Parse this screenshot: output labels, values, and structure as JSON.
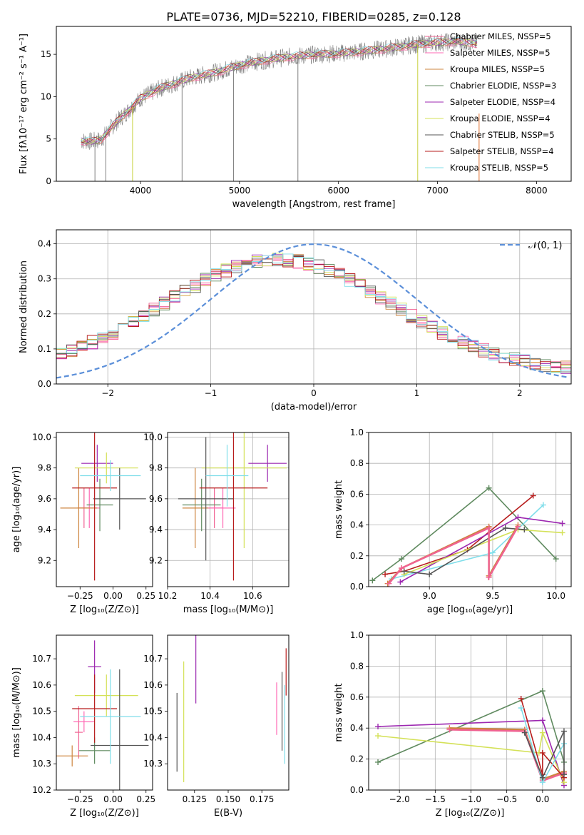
{
  "figure": {
    "title": "PLATE=0736, MJD=52210, FIBERID=0285, z=0.128",
    "colors": {
      "Chabrier MILES": "#f06292",
      "Salpeter MILES": "#ff69b4",
      "Kroupa MILES": "#cd853f",
      "Chabrier ELODIE": "#5f8a5f",
      "Salpeter ELODIE": "#9c27b0",
      "Kroupa ELODIE": "#d4e157",
      "Chabrier STELIB": "#555555",
      "Salpeter STELIB": "#b71c1c",
      "Kroupa STELIB": "#80deea",
      "gaussian": "#5b8fd9",
      "data": "#808080"
    }
  },
  "chart_data": [
    {
      "id": "spectrum",
      "type": "line",
      "xlabel": "wavelength [Angstrom, rest frame]",
      "ylabel": "Flux [fλ10⁻¹⁷ erg cm⁻² s⁻¹ A⁻¹]",
      "xlim": [
        3150,
        8350
      ],
      "ylim": [
        0,
        18.3
      ],
      "xticks": [
        4000,
        5000,
        6000,
        7000,
        8000
      ],
      "yticks": [
        0,
        5,
        10,
        15
      ],
      "legend": [
        "Chabrier MILES, NSSP=5",
        "Salpeter MILES, NSSP=5",
        "Kroupa MILES, NSSP=5",
        "Chabrier ELODIE, NSSP=3",
        "Salpeter ELODIE, NSSP=4",
        "Kroupa ELODIE, NSSP=4",
        "Chabrier STELIB, NSSP=5",
        "Salpeter STELIB, NSSP=4",
        "Kroupa STELIB, NSSP=5"
      ],
      "legend_keys": [
        "Chabrier MILES",
        "Salpeter MILES",
        "Kroupa MILES",
        "Chabrier ELODIE",
        "Salpeter ELODIE",
        "Kroupa ELODIE",
        "Chabrier STELIB",
        "Salpeter STELIB",
        "Kroupa STELIB"
      ],
      "continuum": {
        "x": [
          3400,
          3500,
          3600,
          3700,
          3800,
          3900,
          4000,
          4200,
          4500,
          4800,
          5000,
          5200,
          5500,
          5800,
          6000,
          6200,
          6500,
          6800,
          7000,
          7200,
          7400
        ],
        "y": [
          4.8,
          4.7,
          4.9,
          6.3,
          7.5,
          8.6,
          9.8,
          11.0,
          12.2,
          13.0,
          13.7,
          14.2,
          14.7,
          15.0,
          15.1,
          15.3,
          15.7,
          16.2,
          16.4,
          16.5,
          16.3
        ]
      },
      "absorption_spikes": [
        {
          "x": 3540,
          "y": 0
        },
        {
          "x": 3650,
          "y": 0
        },
        {
          "x": 3920,
          "y": 0
        },
        {
          "x": 4420,
          "y": 0
        },
        {
          "x": 4940,
          "y": 0
        },
        {
          "x": 5590,
          "y": 0
        },
        {
          "x": 6800,
          "y": 0
        },
        {
          "x": 7420,
          "y": 0
        }
      ]
    },
    {
      "id": "residuals",
      "type": "line",
      "xlabel": "(data-model)/error",
      "ylabel": "Normed distribution",
      "xlim": [
        -2.5,
        2.5
      ],
      "ylim": [
        0,
        0.44
      ],
      "xticks": [
        -2,
        -1,
        0,
        1,
        2
      ],
      "yticks": [
        0.0,
        0.1,
        0.2,
        0.3,
        0.4
      ],
      "legend": [
        "𝒩(0, 1)"
      ],
      "gaussian": {
        "mean": 0,
        "sigma": 1
      }
    },
    {
      "id": "age-vs-Z",
      "type": "scatter",
      "xlabel": "Z [log₁₀(Z/Z⊙)]",
      "ylabel": "age  [log₁₀(age/yr)]",
      "xlim": [
        -0.43,
        0.3
      ],
      "ylim": [
        9.03,
        10.03
      ],
      "xticks": [
        -0.25,
        0.0,
        0.25
      ],
      "yticks": [
        9.2,
        9.4,
        9.6,
        9.8,
        10.0
      ],
      "points": [
        {
          "key": "Chabrier MILES",
          "x": -0.22,
          "y": 9.54,
          "xerr": 0.05,
          "yerr": 0.13
        },
        {
          "key": "Salpeter MILES",
          "x": -0.18,
          "y": 9.54,
          "xerr": 0.08,
          "yerr": 0.13
        },
        {
          "key": "Kroupa MILES",
          "x": -0.26,
          "y": 9.54,
          "xerr": 0.14,
          "yerr": 0.26
        },
        {
          "key": "Chabrier ELODIE",
          "x": -0.1,
          "y": 9.56,
          "xerr": 0.1,
          "yerr": 0.17
        },
        {
          "key": "Salpeter ELODIE",
          "x": -0.12,
          "y": 9.83,
          "xerr": 0.12,
          "yerr": 0.12
        },
        {
          "key": "Kroupa ELODIE",
          "x": -0.05,
          "y": 9.8,
          "xerr": 0.24,
          "yerr": 0.1
        },
        {
          "key": "Chabrier STELIB",
          "x": 0.05,
          "y": 9.6,
          "xerr": 0.2,
          "yerr": 0.2
        },
        {
          "key": "Salpeter STELIB",
          "x": -0.14,
          "y": 9.67,
          "xerr": 0.17,
          "yerr": 0.6
        },
        {
          "key": "Kroupa STELIB",
          "x": -0.02,
          "y": 9.75,
          "xerr": 0.23,
          "yerr": 0.1
        }
      ]
    },
    {
      "id": "age-vs-mass",
      "type": "scatter",
      "xlabel": "mass [log₁₀(M/M⊙)]",
      "ylabel": "",
      "xlim": [
        10.2,
        10.77
      ],
      "ylim": [
        9.03,
        10.03
      ],
      "xticks": [
        10.2,
        10.4,
        10.6
      ],
      "yticks": [
        9.2,
        9.4,
        9.6,
        9.8,
        10.0
      ],
      "points": [
        {
          "key": "Chabrier MILES",
          "x": 10.42,
          "y": 9.54,
          "xerr": 0.04,
          "yerr": 0.13
        },
        {
          "key": "Salpeter MILES",
          "x": 10.46,
          "y": 9.54,
          "xerr": 0.06,
          "yerr": 0.13
        },
        {
          "key": "Kroupa MILES",
          "x": 10.33,
          "y": 9.54,
          "xerr": 0.06,
          "yerr": 0.26
        },
        {
          "key": "Chabrier ELODIE",
          "x": 10.36,
          "y": 9.56,
          "xerr": 0.09,
          "yerr": 0.17
        },
        {
          "key": "Salpeter ELODIE",
          "x": 10.67,
          "y": 9.83,
          "xerr": 0.09,
          "yerr": 0.12
        },
        {
          "key": "Kroupa ELODIE",
          "x": 10.56,
          "y": 9.8,
          "xerr": 0.2,
          "yerr": 0.52
        },
        {
          "key": "Chabrier STELIB",
          "x": 10.38,
          "y": 9.6,
          "xerr": 0.13,
          "yerr": 0.4
        },
        {
          "key": "Salpeter STELIB",
          "x": 10.51,
          "y": 9.67,
          "xerr": 0.16,
          "yerr": 0.6
        },
        {
          "key": "Kroupa STELIB",
          "x": 10.48,
          "y": 9.75,
          "xerr": 0.1,
          "yerr": 0.2
        }
      ]
    },
    {
      "id": "mass-weight-vs-age",
      "type": "line",
      "xlabel": "age  [log₁₀(age/yr)]",
      "ylabel": "mass weight",
      "xlim": [
        8.52,
        10.12
      ],
      "ylim": [
        0,
        1.0
      ],
      "xticks": [
        9.0,
        9.5,
        10.0
      ],
      "yticks": [
        0.0,
        0.2,
        0.4,
        0.6,
        0.8,
        1.0
      ],
      "series": [
        {
          "key": "Chabrier ELODIE",
          "x": [
            8.55,
            8.78,
            9.47,
            10.0
          ],
          "y": [
            0.04,
            0.18,
            0.64,
            0.18
          ]
        },
        {
          "key": "Salpeter STELIB",
          "x": [
            8.65,
            8.8,
            9.3,
            9.82
          ],
          "y": [
            0.08,
            0.1,
            0.24,
            0.59
          ]
        },
        {
          "key": "Kroupa STELIB",
          "x": [
            8.7,
            9.5,
            9.9
          ],
          "y": [
            0.05,
            0.22,
            0.53
          ]
        },
        {
          "key": "Salpeter ELODIE",
          "x": [
            8.77,
            9.7,
            10.05
          ],
          "y": [
            0.03,
            0.45,
            0.41
          ]
        },
        {
          "key": "Kroupa ELODIE",
          "x": [
            8.8,
            9.7,
            10.05
          ],
          "y": [
            0.08,
            0.37,
            0.35
          ]
        },
        {
          "key": "Chabrier STELIB",
          "x": [
            8.8,
            9.0,
            9.6,
            9.75
          ],
          "y": [
            0.1,
            0.08,
            0.38,
            0.37
          ]
        },
        {
          "key": "Kroupa MILES",
          "x": [
            8.67,
            8.78,
            9.47,
            9.47,
            9.7
          ],
          "y": [
            0.02,
            0.12,
            0.39,
            0.07,
            0.4
          ]
        },
        {
          "key": "Chabrier MILES",
          "x": [
            8.68,
            8.78,
            9.47,
            9.47,
            9.7
          ],
          "y": [
            0.02,
            0.12,
            0.38,
            0.06,
            0.39
          ]
        }
      ]
    },
    {
      "id": "mass-vs-Z",
      "type": "scatter",
      "xlabel": "Z [log₁₀(Z/Z⊙)]",
      "ylabel": "mass [log₁₀(M/M⊙)]",
      "xlim": [
        -0.43,
        0.3
      ],
      "ylim": [
        10.2,
        10.79
      ],
      "xticks": [
        -0.25,
        0.0,
        0.25
      ],
      "yticks": [
        10.2,
        10.3,
        10.4,
        10.5,
        10.6,
        10.7
      ],
      "points": [
        {
          "key": "Chabrier MILES",
          "x": -0.26,
          "y": 10.42,
          "xerr": 0.03,
          "yerr": 0.1
        },
        {
          "key": "Salpeter MILES",
          "x": -0.22,
          "y": 10.46,
          "xerr": 0.08,
          "yerr": 0.04
        },
        {
          "key": "Kroupa MILES",
          "x": -0.31,
          "y": 10.33,
          "xerr": 0.12,
          "yerr": 0.04
        },
        {
          "key": "Chabrier ELODIE",
          "x": -0.14,
          "y": 10.35,
          "xerr": 0.12,
          "yerr": 0.05
        },
        {
          "key": "Salpeter ELODIE",
          "x": -0.14,
          "y": 10.67,
          "xerr": 0.05,
          "yerr": 0.1
        },
        {
          "key": "Kroupa ELODIE",
          "x": -0.05,
          "y": 10.56,
          "xerr": 0.24,
          "yerr": 0.08
        },
        {
          "key": "Chabrier STELIB",
          "x": 0.05,
          "y": 10.37,
          "xerr": 0.22,
          "yerr": 0.29
        },
        {
          "key": "Salpeter STELIB",
          "x": -0.14,
          "y": 10.51,
          "xerr": 0.17,
          "yerr": 0.13
        },
        {
          "key": "Kroupa STELIB",
          "x": -0.02,
          "y": 10.48,
          "xerr": 0.23,
          "yerr": 0.18
        }
      ]
    },
    {
      "id": "mass-vs-EBV",
      "type": "scatter",
      "xlabel": "E(B-V)",
      "ylabel": "",
      "xlim": [
        0.105,
        0.195
      ],
      "ylim": [
        10.2,
        10.79
      ],
      "xticks": [
        0.125,
        0.15,
        0.175
      ],
      "xticklabels": [
        "0.125",
        "0.150",
        "0.175"
      ],
      "yticks": [
        10.3,
        10.4,
        10.5,
        10.6,
        10.7
      ],
      "points": [
        {
          "key": "Chabrier STELIB",
          "x": 0.112,
          "y": 10.42,
          "xerr": 0,
          "yerr": 0.15
        },
        {
          "key": "Kroupa ELODIE",
          "x": 0.117,
          "y": 10.46,
          "xerr": 0,
          "yerr": 0.23
        },
        {
          "key": "Salpeter ELODIE",
          "x": 0.126,
          "y": 10.67,
          "xerr": 0,
          "yerr": 0.14
        },
        {
          "key": "Salpeter MILES",
          "x": 0.186,
          "y": 10.51,
          "xerr": 0,
          "yerr": 0.1
        },
        {
          "key": "Chabrier STELIB",
          "x": 0.19,
          "y": 10.5,
          "xerr": 0,
          "yerr": 0.15
        },
        {
          "key": "Salpeter STELIB",
          "x": 0.193,
          "y": 10.65,
          "xerr": 0,
          "yerr": 0.09
        },
        {
          "key": "Kroupa STELIB",
          "x": 0.192,
          "y": 10.45,
          "xerr": 0,
          "yerr": 0.15
        }
      ]
    },
    {
      "id": "mass-weight-vs-Z",
      "type": "line",
      "xlabel": "Z [log₁₀(Z/Z⊙)]",
      "ylabel": "mass weight",
      "xlim": [
        -2.43,
        0.4
      ],
      "ylim": [
        0,
        1.0
      ],
      "xticks": [
        -2.0,
        -1.5,
        -1.0,
        -0.5,
        0.0
      ],
      "yticks": [
        0.0,
        0.2,
        0.4,
        0.6,
        0.8,
        1.0
      ],
      "series": [
        {
          "key": "Chabrier ELODIE",
          "x": [
            -2.3,
            0.0,
            0.3
          ],
          "y": [
            0.18,
            0.64,
            0.18
          ]
        },
        {
          "key": "Salpeter ELODIE",
          "x": [
            -2.3,
            0.0,
            0.3
          ],
          "y": [
            0.41,
            0.45,
            0.03
          ]
        },
        {
          "key": "Kroupa ELODIE",
          "x": [
            -2.3,
            -0.05,
            0.0,
            0.3
          ],
          "y": [
            0.35,
            0.24,
            0.37,
            0.05
          ]
        },
        {
          "key": "Kroupa MILES",
          "x": [
            -1.3,
            -0.25,
            0.0,
            0.3
          ],
          "y": [
            0.4,
            0.39,
            0.07,
            0.12
          ]
        },
        {
          "key": "Chabrier MILES",
          "x": [
            -1.3,
            -0.25,
            0.0,
            0.3
          ],
          "y": [
            0.39,
            0.38,
            0.06,
            0.11
          ]
        },
        {
          "key": "Salpeter STELIB",
          "x": [
            -0.3,
            0.0,
            0.0,
            0.3
          ],
          "y": [
            0.59,
            0.1,
            0.24,
            0.08
          ]
        },
        {
          "key": "Kroupa STELIB",
          "x": [
            -0.3,
            0.0,
            0.3
          ],
          "y": [
            0.53,
            0.05,
            0.3
          ]
        },
        {
          "key": "Chabrier STELIB",
          "x": [
            -0.25,
            0.0,
            0.3,
            0.3
          ],
          "y": [
            0.37,
            0.08,
            0.38,
            0.1
          ]
        }
      ]
    }
  ]
}
